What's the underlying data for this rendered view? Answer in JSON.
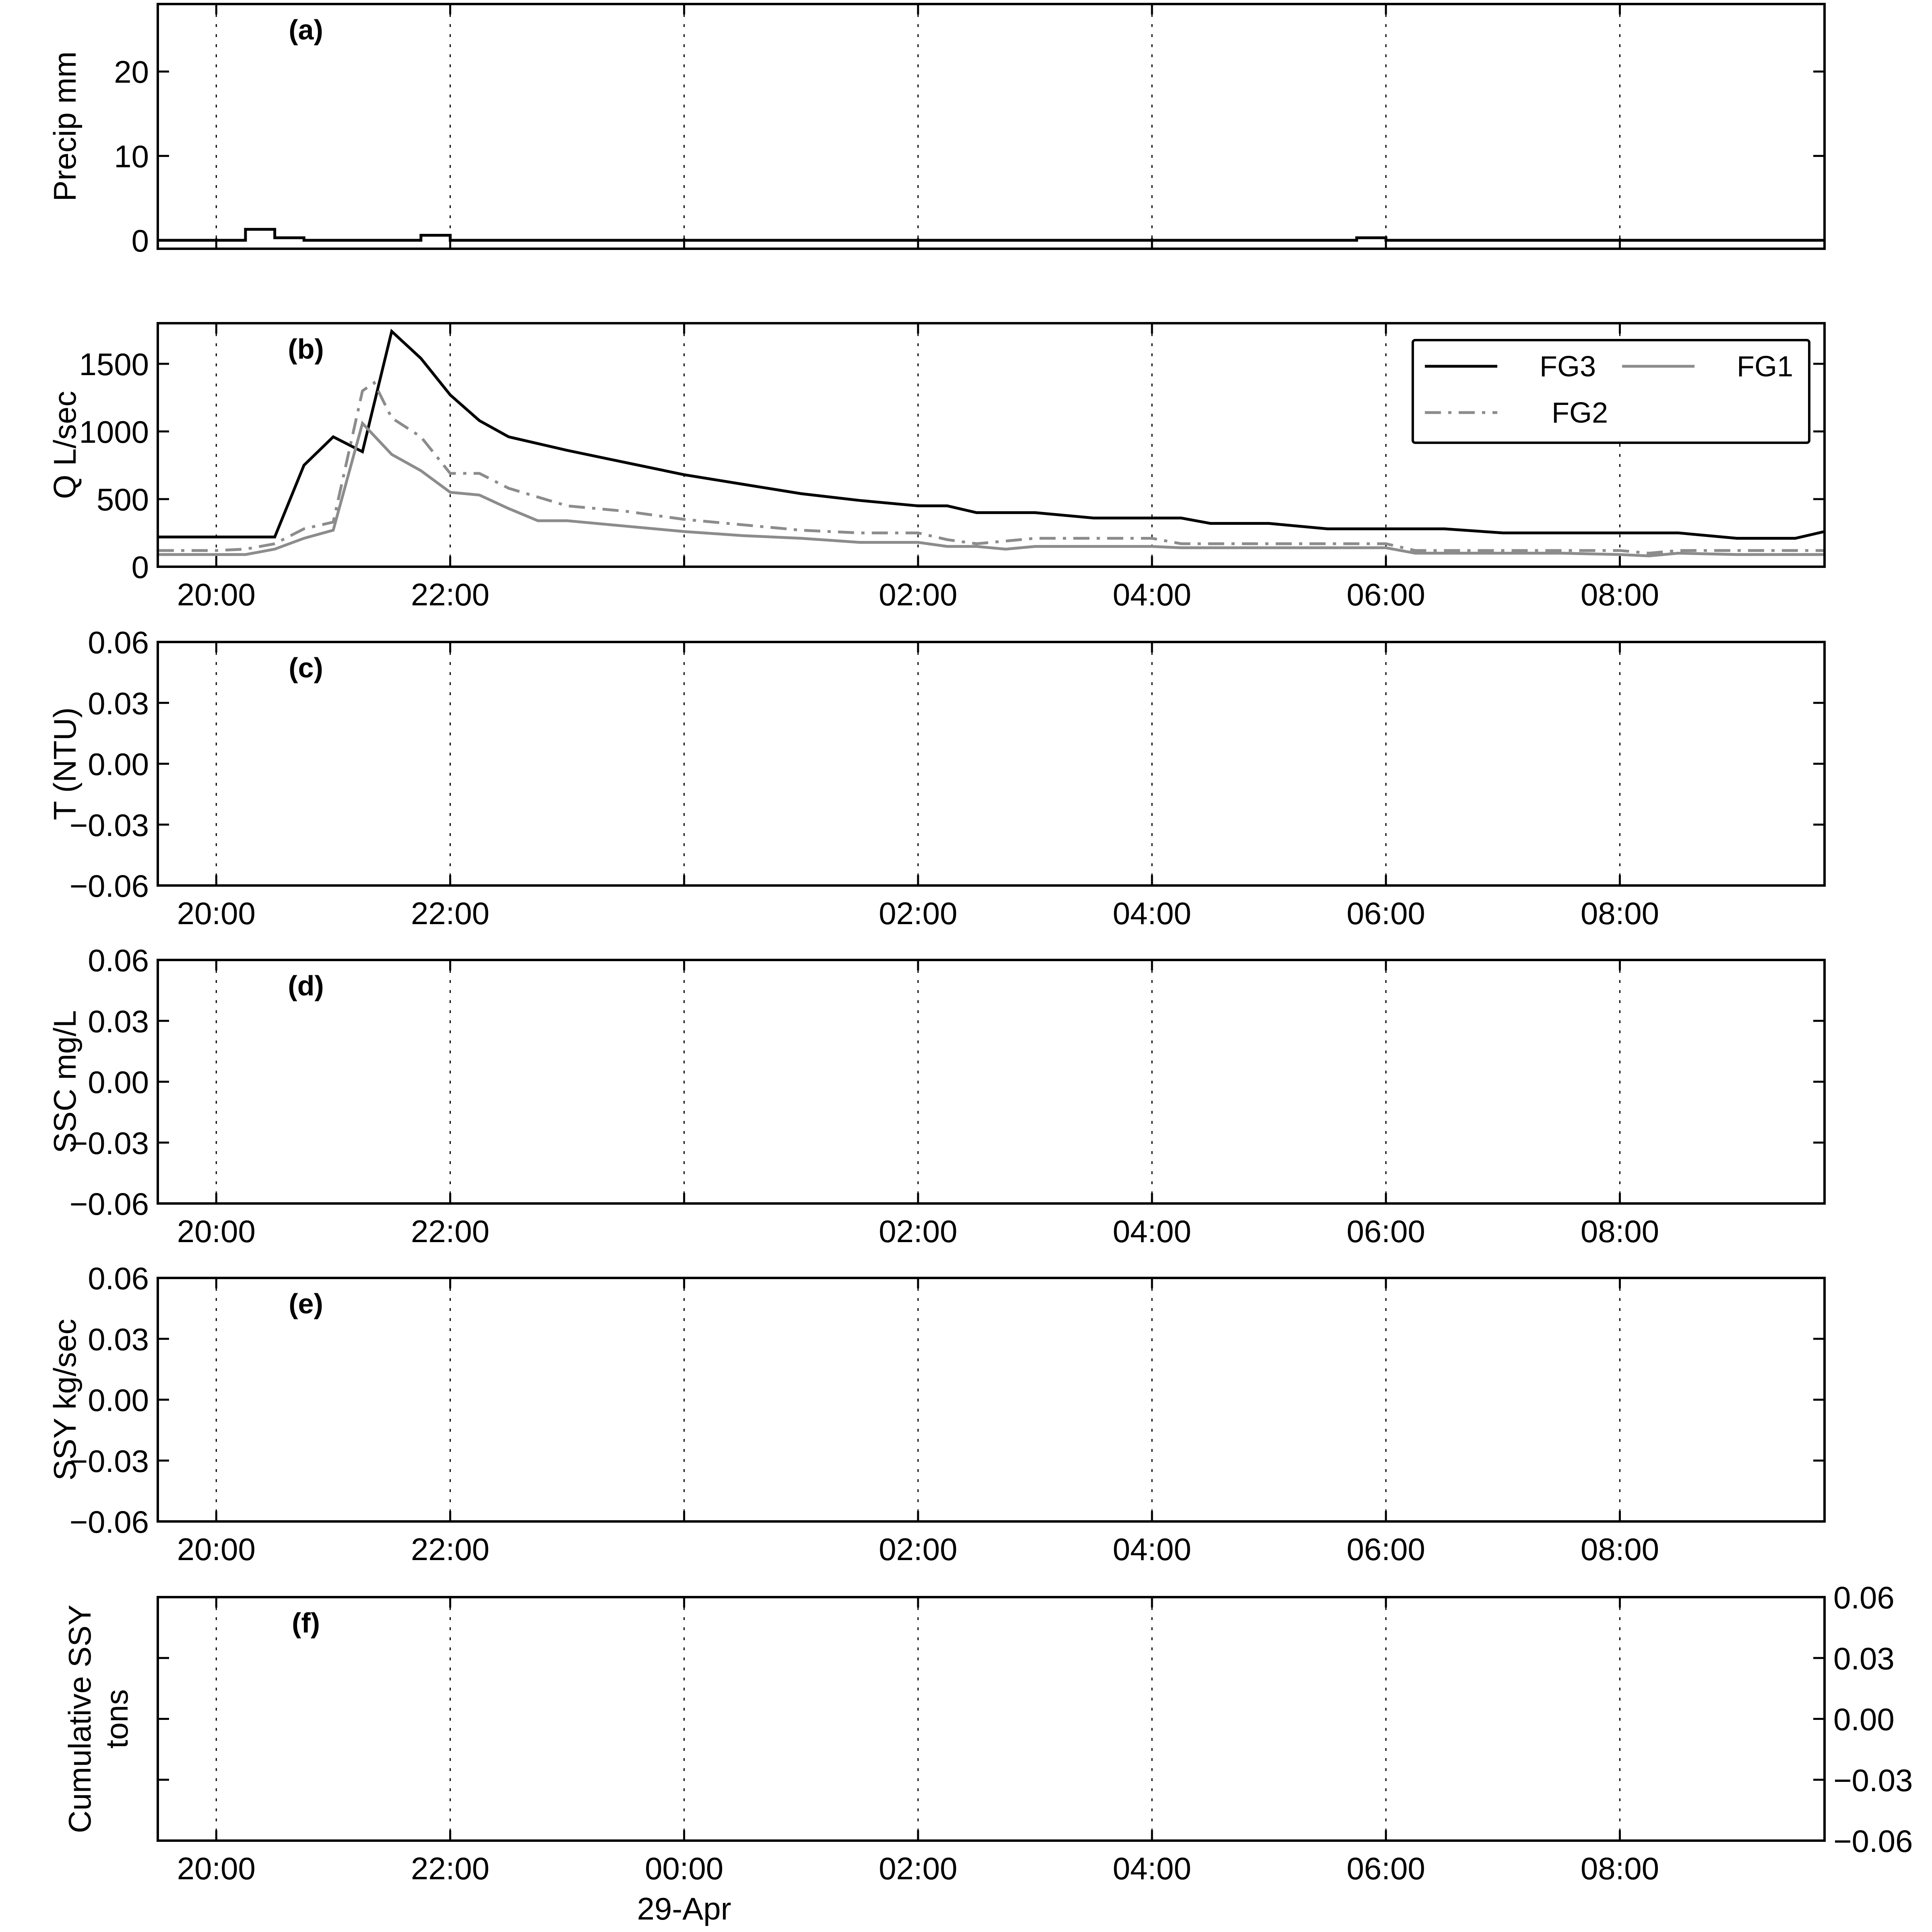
{
  "chart_data": [
    {
      "id": "a",
      "type": "line",
      "step": true,
      "panel_label": "(a)",
      "ylabel": "Precip mm",
      "ylim": [
        -1,
        28
      ],
      "yticks": [
        "0",
        "10",
        "20"
      ],
      "ytick_values": [
        0,
        10,
        20
      ],
      "ytick_side": "left",
      "xlim": [
        19.5,
        33.75
      ],
      "xticks_visible": false,
      "grid_x": true,
      "series": [
        {
          "color": "#000000",
          "style": "solid",
          "x": [
            19.5,
            20.25,
            20.25,
            20.5,
            20.5,
            20.75,
            20.75,
            21.75,
            21.75,
            22.0,
            22.0,
            29.75,
            29.75,
            30.0,
            30.0,
            33.75
          ],
          "y": [
            0,
            0,
            1.3,
            1.3,
            0.3,
            0.3,
            0,
            0,
            0.6,
            0.6,
            0,
            0,
            0.3,
            0.3,
            0,
            0
          ]
        }
      ]
    },
    {
      "id": "b",
      "type": "line",
      "panel_label": "(b)",
      "ylabel": "Q L/sec",
      "ylim": [
        0,
        1800
      ],
      "yticks": [
        "0",
        "500",
        "1000",
        "1500"
      ],
      "ytick_values": [
        0,
        500,
        1000,
        1500
      ],
      "ytick_side": "left",
      "xlim": [
        19.5,
        33.75
      ],
      "xtick_values": [
        20,
        22,
        26,
        28,
        30,
        32
      ],
      "xtick_labels": [
        "20:00",
        "22:00",
        "02:00",
        "04:00",
        "06:00",
        "08:00"
      ],
      "grid_x": true,
      "legend": {
        "position": "top-right",
        "columns": 2
      },
      "series": [
        {
          "name": "FG3",
          "color": "#000000",
          "style": "solid",
          "x": [
            19.5,
            20.5,
            20.75,
            21.0,
            21.25,
            21.5,
            21.75,
            22.0,
            22.25,
            22.5,
            23.0,
            23.5,
            24.0,
            24.5,
            25.0,
            25.5,
            26.0,
            26.25,
            26.5,
            27.0,
            27.5,
            28.0,
            28.25,
            28.5,
            29.0,
            29.5,
            30.0,
            30.5,
            31.0,
            31.5,
            32.0,
            32.5,
            33.0,
            33.5,
            33.75
          ],
          "y": [
            220,
            220,
            750,
            960,
            850,
            1740,
            1540,
            1270,
            1080,
            960,
            860,
            770,
            680,
            610,
            540,
            490,
            450,
            450,
            400,
            400,
            360,
            360,
            360,
            320,
            320,
            280,
            280,
            280,
            250,
            250,
            250,
            250,
            210,
            210,
            260
          ]
        },
        {
          "name": "FG2",
          "color": "#8c8c8c",
          "style": "dashdot",
          "x": [
            19.5,
            20.0,
            20.25,
            20.5,
            20.75,
            21.0,
            21.25,
            21.35,
            21.5,
            21.75,
            22.0,
            22.25,
            22.5,
            23.0,
            23.5,
            24.0,
            24.5,
            25.0,
            25.5,
            26.0,
            26.25,
            26.5,
            27.0,
            27.5,
            28.0,
            28.25,
            28.5,
            29.0,
            29.5,
            30.0,
            30.25,
            30.5,
            31.0,
            31.5,
            32.0,
            32.25,
            32.5,
            33.0,
            33.75
          ],
          "y": [
            120,
            120,
            130,
            170,
            280,
            330,
            1300,
            1360,
            1100,
            960,
            690,
            690,
            580,
            450,
            410,
            350,
            310,
            270,
            250,
            250,
            200,
            170,
            210,
            210,
            210,
            170,
            170,
            170,
            170,
            170,
            120,
            120,
            120,
            120,
            120,
            100,
            120,
            120,
            120
          ]
        },
        {
          "name": "FG1",
          "color": "#8c8c8c",
          "style": "solid",
          "x": [
            19.5,
            20.0,
            20.25,
            20.5,
            20.75,
            21.0,
            21.25,
            21.5,
            21.75,
            22.0,
            22.25,
            22.5,
            22.75,
            23.0,
            23.5,
            24.0,
            24.5,
            25.0,
            25.5,
            26.0,
            26.25,
            26.5,
            26.75,
            27.0,
            27.5,
            28.0,
            28.25,
            28.5,
            29.0,
            29.5,
            30.0,
            30.25,
            30.5,
            31.0,
            31.5,
            32.0,
            32.25,
            32.5,
            33.0,
            33.75
          ],
          "y": [
            90,
            90,
            90,
            130,
            210,
            270,
            1060,
            830,
            710,
            550,
            530,
            430,
            340,
            340,
            300,
            260,
            230,
            210,
            180,
            180,
            150,
            150,
            130,
            150,
            150,
            150,
            140,
            140,
            140,
            140,
            140,
            100,
            100,
            100,
            100,
            90,
            80,
            100,
            90,
            90
          ]
        }
      ]
    },
    {
      "id": "c",
      "type": "line",
      "panel_label": "(c)",
      "ylabel": "T (NTU)",
      "ylim": [
        -0.06,
        0.06
      ],
      "yticks": [
        "−0.06",
        "−0.03",
        "0.00",
        "0.03",
        "0.06"
      ],
      "ytick_values": [
        -0.06,
        -0.03,
        0.0,
        0.03,
        0.06
      ],
      "ytick_side": "left",
      "xlim": [
        19.5,
        33.75
      ],
      "xtick_values": [
        20,
        22,
        26,
        28,
        30,
        32
      ],
      "xtick_labels": [
        "20:00",
        "22:00",
        "02:00",
        "04:00",
        "06:00",
        "08:00"
      ],
      "grid_x": true,
      "series": []
    },
    {
      "id": "d",
      "type": "line",
      "panel_label": "(d)",
      "ylabel": "SSC mg/L",
      "ylim": [
        -0.06,
        0.06
      ],
      "yticks": [
        "−0.06",
        "−0.03",
        "0.00",
        "0.03",
        "0.06"
      ],
      "ytick_values": [
        -0.06,
        -0.03,
        0.0,
        0.03,
        0.06
      ],
      "ytick_side": "left",
      "xlim": [
        19.5,
        33.75
      ],
      "xtick_values": [
        20,
        22,
        26,
        28,
        30,
        32
      ],
      "xtick_labels": [
        "20:00",
        "22:00",
        "02:00",
        "04:00",
        "06:00",
        "08:00"
      ],
      "grid_x": true,
      "series": []
    },
    {
      "id": "e",
      "type": "line",
      "panel_label": "(e)",
      "ylabel": "SSY kg/sec",
      "ylim": [
        -0.06,
        0.06
      ],
      "yticks": [
        "−0.06",
        "−0.03",
        "0.00",
        "0.03",
        "0.06"
      ],
      "ytick_values": [
        -0.06,
        -0.03,
        0.0,
        0.03,
        0.06
      ],
      "ytick_side": "left",
      "xlim": [
        19.5,
        33.75
      ],
      "xtick_values": [
        20,
        22,
        26,
        28,
        30,
        32
      ],
      "xtick_labels": [
        "20:00",
        "22:00",
        "02:00",
        "04:00",
        "06:00",
        "08:00"
      ],
      "grid_x": true,
      "series": []
    },
    {
      "id": "f",
      "type": "line",
      "panel_label": "(f)",
      "ylabel": [
        "Cumulative SSY",
        "tons"
      ],
      "ylim": [
        -0.06,
        0.06
      ],
      "yticks": [
        "−0.06",
        "−0.03",
        "0.00",
        "0.03",
        "0.06"
      ],
      "ytick_values": [
        -0.06,
        -0.03,
        0.0,
        0.03,
        0.06
      ],
      "ytick_side": "right",
      "xlim": [
        19.5,
        33.75
      ],
      "xtick_values": [
        20,
        22,
        24,
        26,
        28,
        30,
        32
      ],
      "xtick_labels": [
        "20:00",
        "22:00",
        "00:00",
        "02:00",
        "04:00",
        "06:00",
        "08:00"
      ],
      "xtick_sublabel": {
        "at": 24,
        "text": "29-Apr"
      },
      "grid_x": true,
      "series": []
    }
  ]
}
